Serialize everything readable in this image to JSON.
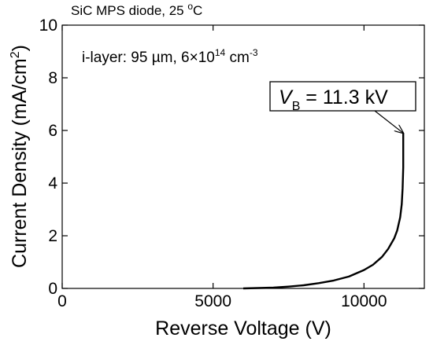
{
  "chart_data": {
    "type": "line",
    "title": "SiC MPS diode, 25 °C",
    "title_parts": {
      "main": "SiC MPS diode, 25 ",
      "sup": "o",
      "unit": "C"
    },
    "xlabel": "Reverse Voltage (V)",
    "ylabel": "Current Density (mA/cm²)",
    "ylabel_parts": {
      "main": "Current Density (mA/cm",
      "sup": "2",
      "end": ")"
    },
    "xlim": [
      0,
      12000
    ],
    "ylim": [
      0,
      10
    ],
    "xticks": [
      0,
      5000,
      10000
    ],
    "xtick_labels": [
      "0",
      "5000",
      "10000"
    ],
    "yticks": [
      0,
      2,
      4,
      6,
      8,
      10
    ],
    "ytick_labels": [
      "0",
      "2",
      "4",
      "6",
      "8",
      "10"
    ],
    "grid": false,
    "annotation": {
      "text": "i-layer: 95 µm, 6×10¹⁴ cm⁻³",
      "parts": {
        "a": "i-layer: 95 µm, 6",
        "times": "×",
        "b": "10",
        "sup1": "14",
        "c": " cm",
        "sup2": "-3"
      }
    },
    "breakdown": {
      "text": "VB = 11.3 kV",
      "parts": {
        "v": "V",
        "sub": "B",
        "rest": " = 11.3 kV"
      },
      "point": [
        11300,
        5.9
      ]
    },
    "series": [
      {
        "color": "#000000",
        "x": [
          6000,
          7000,
          7500,
          8000,
          8500,
          9000,
          9500,
          10000,
          10300,
          10600,
          10800,
          11000,
          11100,
          11200,
          11250,
          11280,
          11300,
          11300
        ],
        "y": [
          0,
          0.03,
          0.07,
          0.12,
          0.2,
          0.3,
          0.45,
          0.7,
          0.9,
          1.2,
          1.5,
          1.9,
          2.2,
          2.7,
          3.2,
          3.8,
          4.6,
          5.9
        ]
      }
    ]
  }
}
